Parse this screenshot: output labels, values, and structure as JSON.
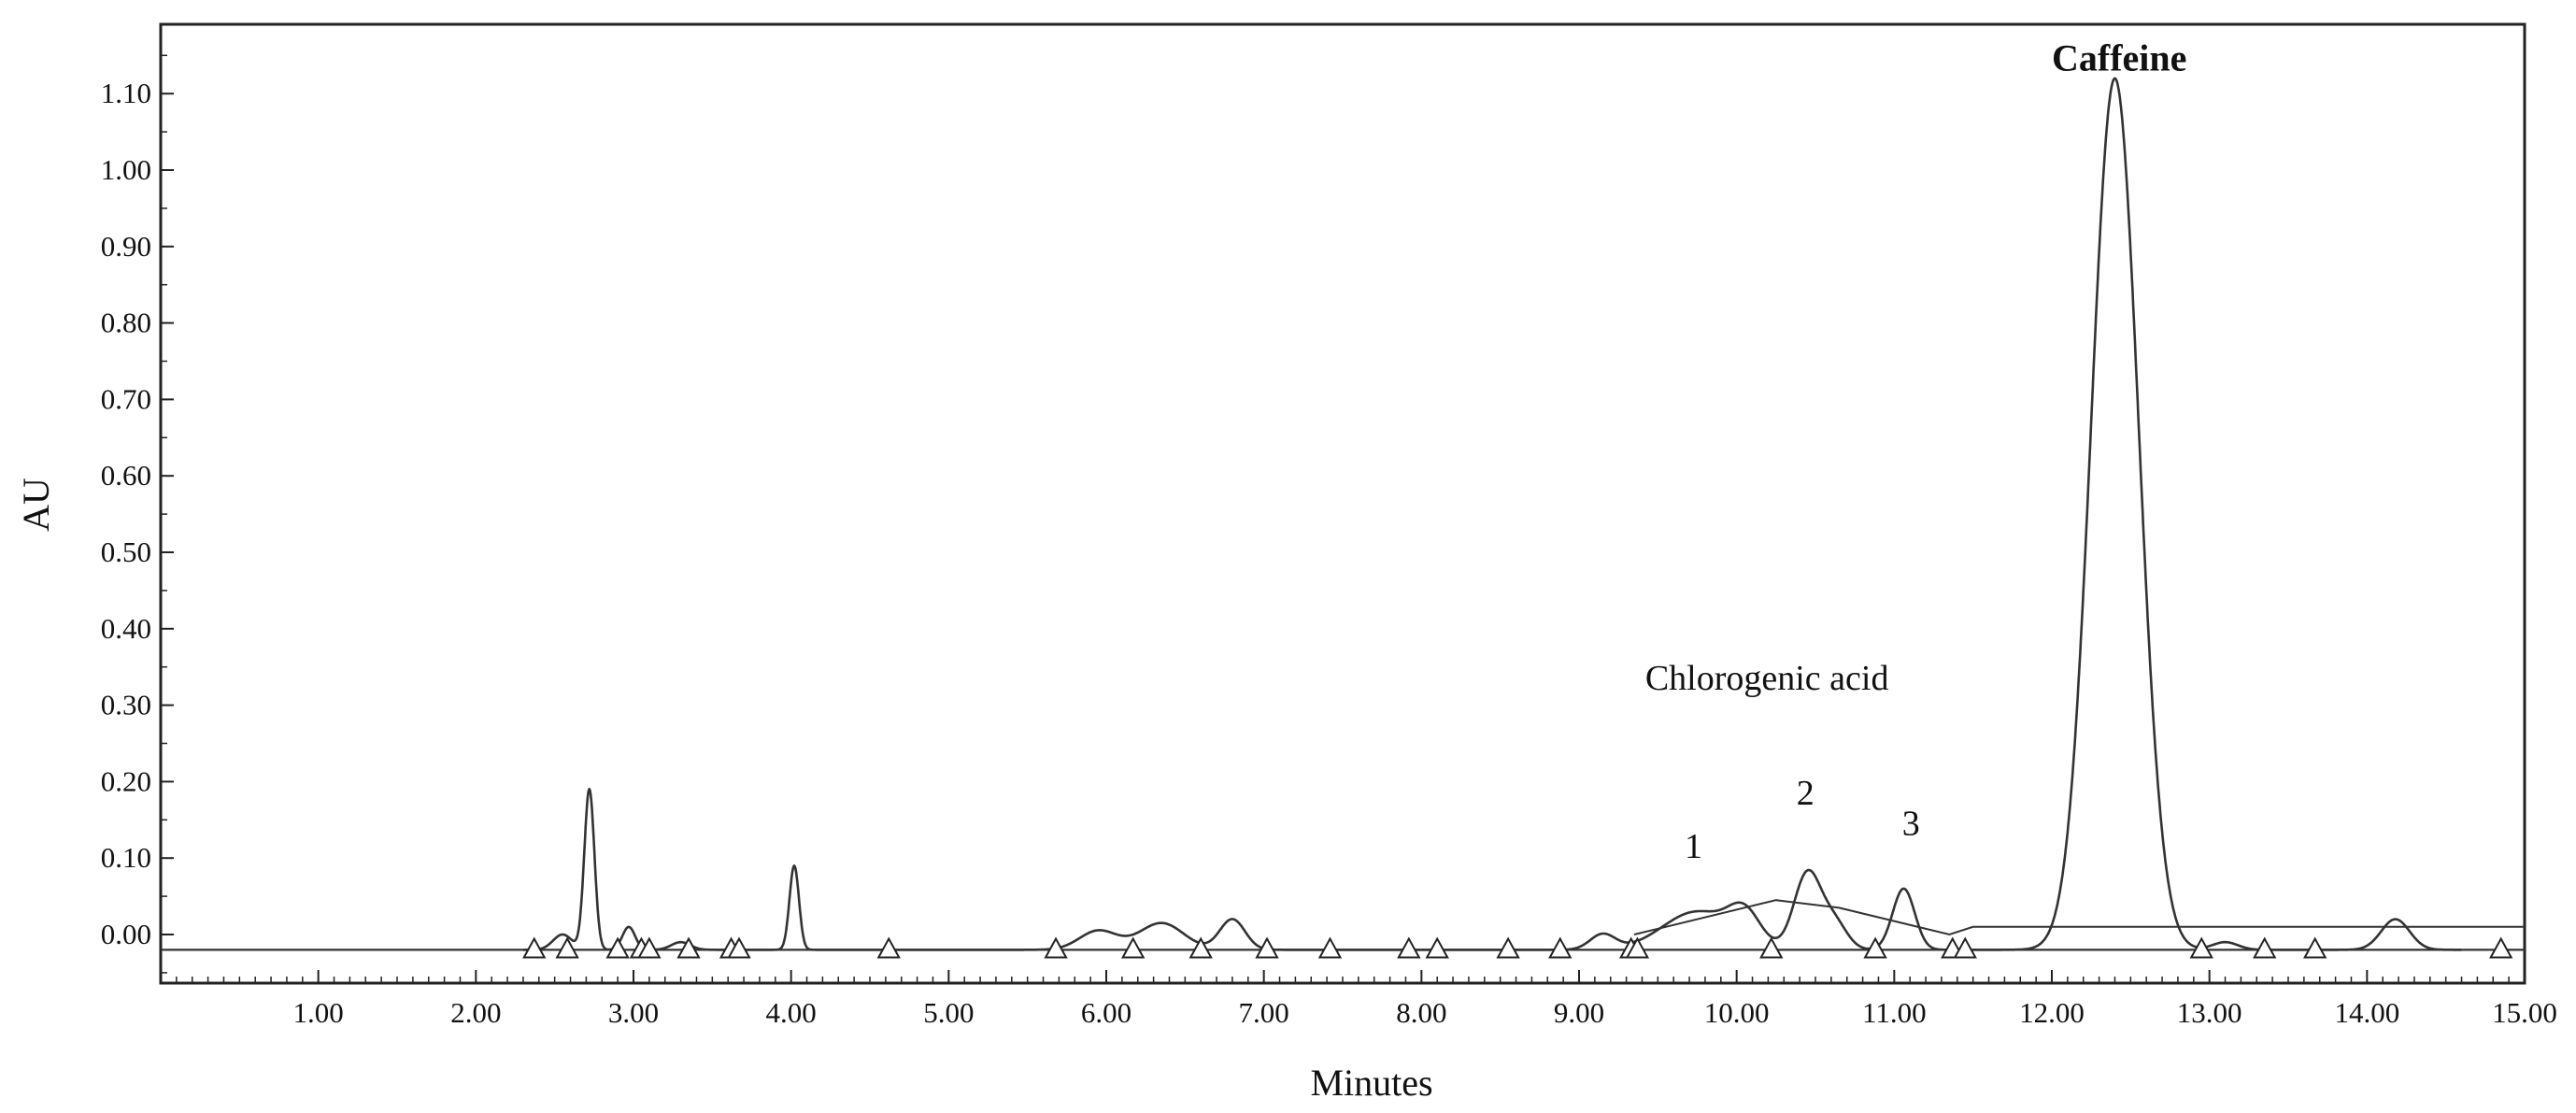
{
  "chart_data": {
    "type": "line",
    "title": "",
    "xlabel": "Minutes",
    "ylabel": "AU",
    "xlim": [
      0,
      15
    ],
    "ylim": [
      -0.07,
      1.22
    ],
    "x_ticks": [
      "1.00",
      "2.00",
      "3.00",
      "4.00",
      "5.00",
      "6.00",
      "7.00",
      "8.00",
      "9.00",
      "10.00",
      "11.00",
      "12.00",
      "13.00",
      "14.00",
      "15.00"
    ],
    "y_ticks": [
      "0.00",
      "0.10",
      "0.20",
      "0.30",
      "0.40",
      "0.50",
      "0.60",
      "0.70",
      "0.80",
      "0.90",
      "1.00",
      "1.10"
    ],
    "grid": false,
    "legend": "none",
    "line_color": "#333333",
    "series": [
      {
        "baseline": -0.02,
        "peaks": [
          {
            "x": 2.55,
            "height": 0.02,
            "width": 0.06
          },
          {
            "x": 2.72,
            "height": 0.21,
            "width": 0.032
          },
          {
            "x": 2.97,
            "height": 0.03,
            "width": 0.04
          },
          {
            "x": 3.3,
            "height": 0.01,
            "width": 0.06
          },
          {
            "x": 4.02,
            "height": 0.11,
            "width": 0.03
          },
          {
            "x": 5.95,
            "height": 0.025,
            "width": 0.12
          },
          {
            "x": 6.35,
            "height": 0.035,
            "width": 0.14
          },
          {
            "x": 6.8,
            "height": 0.04,
            "width": 0.08
          },
          {
            "x": 9.15,
            "height": 0.02,
            "width": 0.08
          },
          {
            "x": 9.75,
            "height": 0.05,
            "width": 0.22
          },
          {
            "x": 10.05,
            "height": 0.04,
            "width": 0.1
          },
          {
            "x": 10.45,
            "height": 0.1,
            "width": 0.085
          },
          {
            "x": 10.62,
            "height": 0.035,
            "width": 0.08
          },
          {
            "x": 11.06,
            "height": 0.08,
            "width": 0.07
          },
          {
            "x": 12.4,
            "height": 1.14,
            "width": 0.15
          },
          {
            "x": 13.1,
            "height": 0.01,
            "width": 0.08
          },
          {
            "x": 14.18,
            "height": 0.04,
            "width": 0.09
          }
        ],
        "integration_baseline": [
          [
            9.35,
            0.0
          ],
          [
            10.25,
            0.045
          ],
          [
            10.65,
            0.035
          ],
          [
            11.35,
            0.0
          ],
          [
            11.5,
            0.01
          ],
          [
            12.95,
            0.01
          ],
          [
            15.0,
            0.01
          ]
        ],
        "marker_x": [
          2.37,
          2.58,
          2.9,
          3.05,
          3.1,
          3.35,
          3.62,
          3.67,
          4.62,
          5.68,
          6.17,
          6.6,
          7.02,
          7.42,
          7.92,
          8.1,
          8.55,
          8.88,
          9.33,
          9.37,
          10.22,
          10.88,
          11.37,
          11.45,
          12.95,
          13.35,
          13.67,
          14.85
        ]
      }
    ],
    "annotations": [
      {
        "text": "Caffeine",
        "x": 12.0,
        "y": 1.13,
        "bold": true
      },
      {
        "text": "Chlorogenic acid",
        "x": 9.42,
        "y": 0.32,
        "bold": false
      },
      {
        "text": "1",
        "x": 9.67,
        "y": 0.1,
        "bold": false
      },
      {
        "text": "2",
        "x": 10.38,
        "y": 0.17,
        "bold": false
      },
      {
        "text": "3",
        "x": 11.05,
        "y": 0.13,
        "bold": false
      }
    ]
  }
}
